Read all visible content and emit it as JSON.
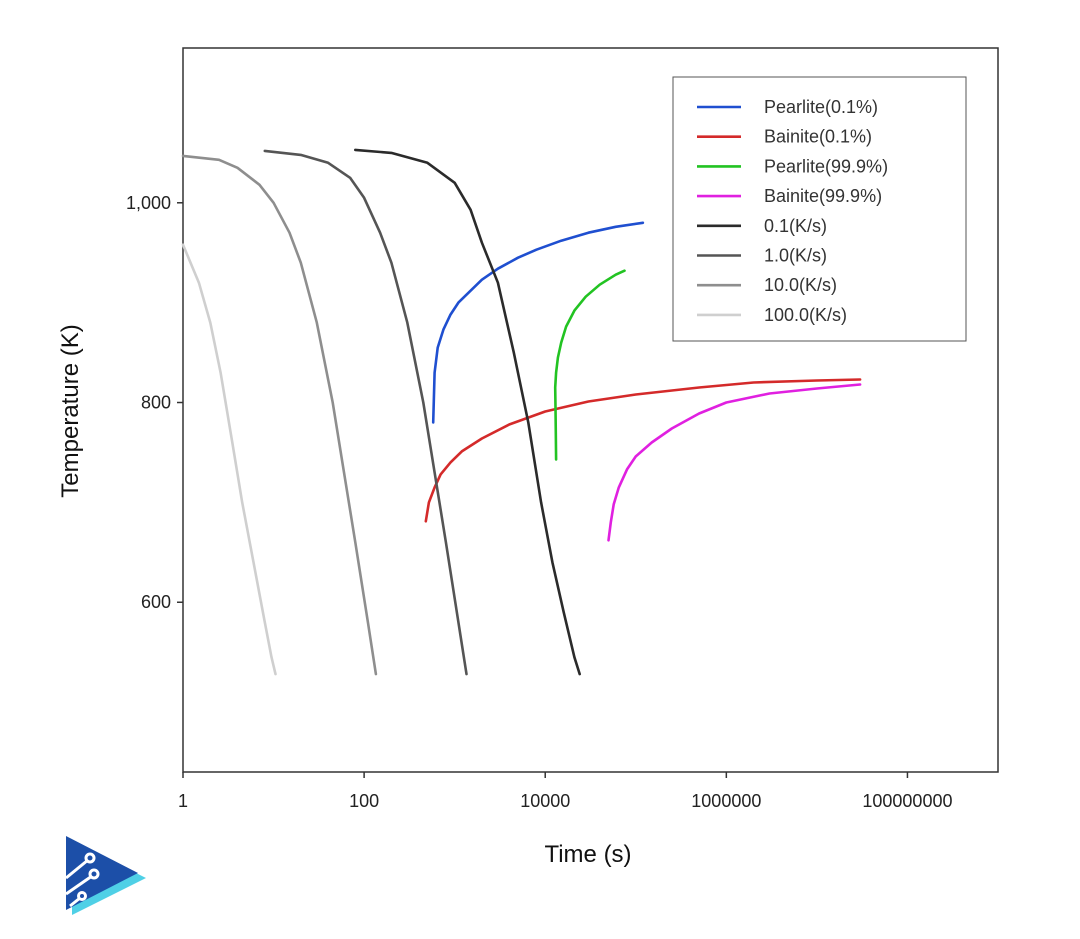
{
  "chart_data": {
    "type": "line",
    "title": "",
    "xlabel": "Time (s)",
    "ylabel": "Temperature (K)",
    "x_scale": "log",
    "xlim": [
      1,
      1000000000
    ],
    "ylim": [
      430,
      1155
    ],
    "x_ticks": [
      {
        "value": 1,
        "label": "1"
      },
      {
        "value": 100,
        "label": "100"
      },
      {
        "value": 10000,
        "label": "10000"
      },
      {
        "value": 1000000,
        "label": "1000000"
      },
      {
        "value": 100000000,
        "label": "100000000"
      }
    ],
    "y_ticks": [
      {
        "value": 600,
        "label": "600"
      },
      {
        "value": 800,
        "label": "800"
      },
      {
        "value": 1000,
        "label": "1,000"
      }
    ],
    "grid": false,
    "legend_position": "top-right",
    "series": [
      {
        "name": "Pearlite(0.1%)",
        "color": "#1f4fd0",
        "points": [
          [
            580,
            780
          ],
          [
            600,
            830
          ],
          [
            650,
            855
          ],
          [
            750,
            873
          ],
          [
            900,
            888
          ],
          [
            1100,
            900
          ],
          [
            1500,
            912
          ],
          [
            2000,
            923
          ],
          [
            3000,
            934
          ],
          [
            5000,
            945
          ],
          [
            8000,
            953
          ],
          [
            15000,
            962
          ],
          [
            30000,
            970
          ],
          [
            60000,
            976
          ],
          [
            120000,
            980
          ]
        ]
      },
      {
        "name": "Bainite(0.1%)",
        "color": "#d42a2a",
        "points": [
          [
            480,
            681
          ],
          [
            520,
            700
          ],
          [
            600,
            715
          ],
          [
            700,
            728
          ],
          [
            900,
            740
          ],
          [
            1200,
            751
          ],
          [
            2000,
            764
          ],
          [
            4000,
            778
          ],
          [
            10000,
            791
          ],
          [
            30000,
            801
          ],
          [
            100000,
            808
          ],
          [
            500000,
            815
          ],
          [
            2000000,
            820
          ],
          [
            10000000,
            822
          ],
          [
            30000000,
            823
          ]
        ]
      },
      {
        "name": "Pearlite(99.9%)",
        "color": "#22c322",
        "points": [
          [
            13200,
            743
          ],
          [
            13100,
            770
          ],
          [
            13000,
            795
          ],
          [
            12900,
            815
          ],
          [
            13200,
            830
          ],
          [
            13800,
            845
          ],
          [
            15000,
            860
          ],
          [
            17000,
            876
          ],
          [
            21000,
            892
          ],
          [
            28000,
            906
          ],
          [
            40000,
            918
          ],
          [
            60000,
            928
          ],
          [
            75000,
            932
          ]
        ]
      },
      {
        "name": "Bainite(99.9%)",
        "color": "#e020e0",
        "points": [
          [
            50000,
            662
          ],
          [
            53000,
            680
          ],
          [
            57000,
            698
          ],
          [
            65000,
            715
          ],
          [
            80000,
            733
          ],
          [
            100000,
            746
          ],
          [
            150000,
            760
          ],
          [
            250000,
            774
          ],
          [
            500000,
            789
          ],
          [
            1000000,
            800
          ],
          [
            3000000,
            809
          ],
          [
            10000000,
            814
          ],
          [
            30000000,
            818
          ]
        ]
      },
      {
        "name": "0.1(K/s)",
        "color": "#2b2b2b",
        "points": [
          [
            80,
            1053
          ],
          [
            200,
            1050
          ],
          [
            500,
            1040
          ],
          [
            1000,
            1020
          ],
          [
            1500,
            993
          ],
          [
            2000,
            960
          ],
          [
            3000,
            920
          ],
          [
            4500,
            850
          ],
          [
            6500,
            780
          ],
          [
            9000,
            700
          ],
          [
            12000,
            640
          ],
          [
            16000,
            590
          ],
          [
            21000,
            545
          ],
          [
            24000,
            528
          ]
        ]
      },
      {
        "name": "1.0(K/s)",
        "color": "#555555",
        "points": [
          [
            8,
            1052
          ],
          [
            20,
            1048
          ],
          [
            40,
            1040
          ],
          [
            70,
            1025
          ],
          [
            100,
            1005
          ],
          [
            150,
            970
          ],
          [
            200,
            940
          ],
          [
            300,
            880
          ],
          [
            450,
            800
          ],
          [
            600,
            730
          ],
          [
            800,
            660
          ],
          [
            1100,
            580
          ],
          [
            1350,
            528
          ]
        ]
      },
      {
        "name": "10.0(K/s)",
        "color": "#8e8e8e",
        "points": [
          [
            1,
            1047
          ],
          [
            2.5,
            1043
          ],
          [
            4,
            1035
          ],
          [
            7,
            1018
          ],
          [
            10,
            1000
          ],
          [
            15,
            970
          ],
          [
            20,
            940
          ],
          [
            30,
            880
          ],
          [
            45,
            800
          ],
          [
            60,
            730
          ],
          [
            80,
            660
          ],
          [
            110,
            580
          ],
          [
            135,
            528
          ]
        ]
      },
      {
        "name": "100.0(K/s)",
        "color": "#cfcfcf",
        "points": [
          [
            1,
            958
          ],
          [
            1.5,
            920
          ],
          [
            2,
            880
          ],
          [
            2.6,
            830
          ],
          [
            3.5,
            760
          ],
          [
            4.5,
            700
          ],
          [
            6,
            640
          ],
          [
            8,
            580
          ],
          [
            9.5,
            545
          ],
          [
            10.5,
            528
          ]
        ]
      }
    ]
  }
}
